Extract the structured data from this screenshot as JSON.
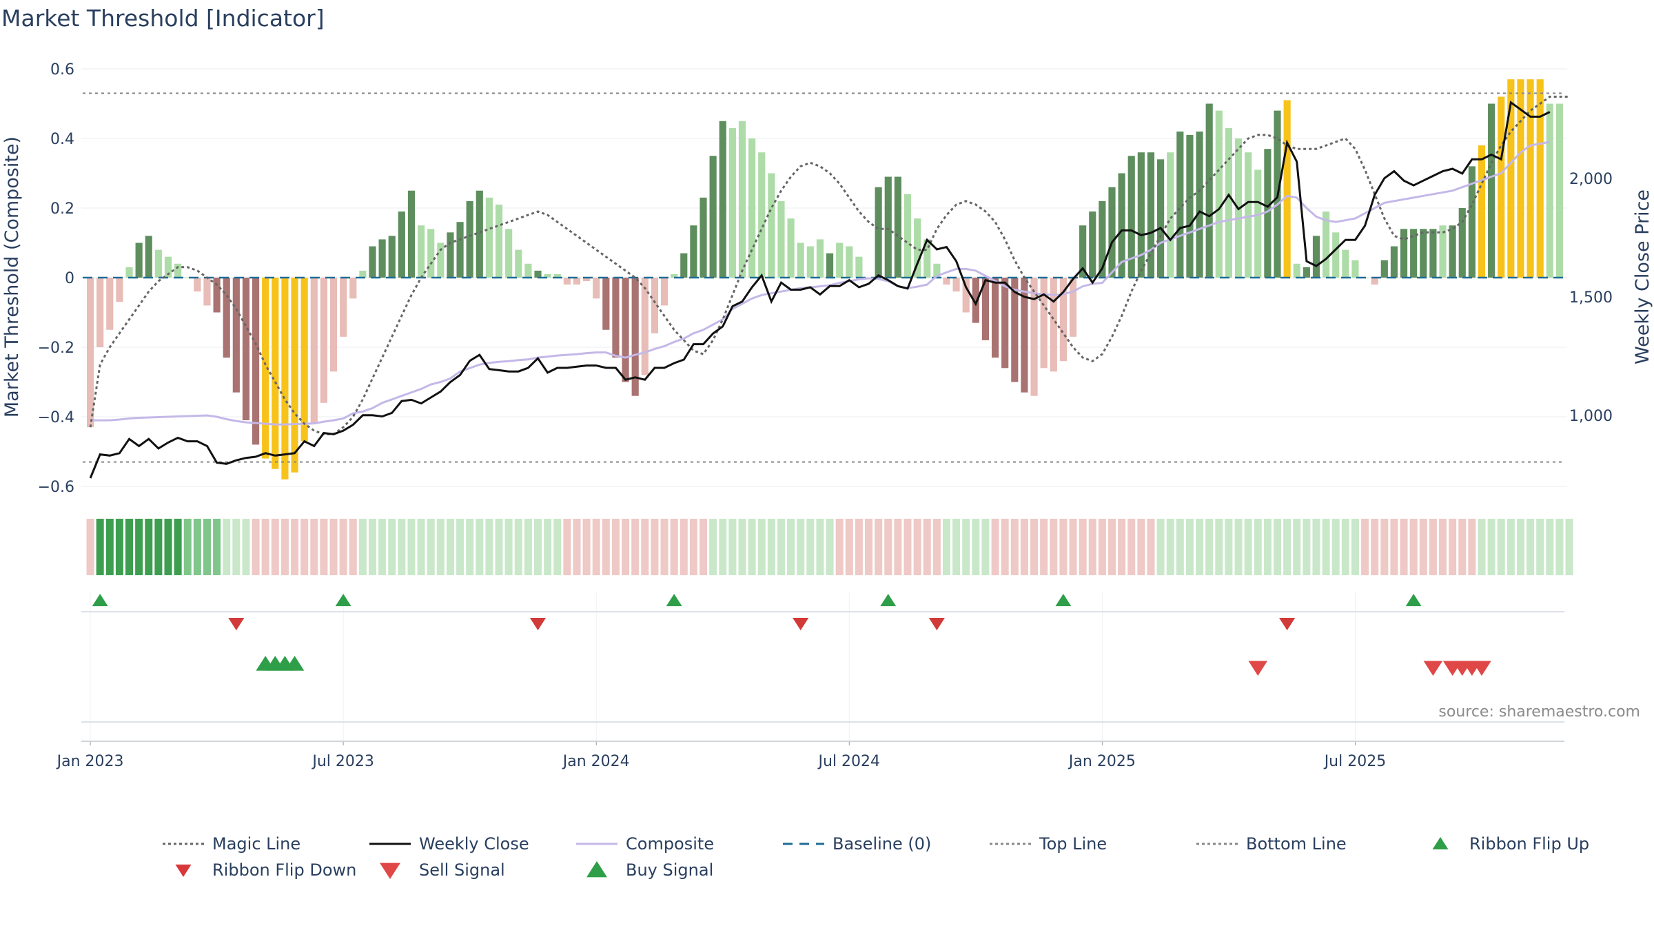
{
  "chart_data": {
    "type": "bar",
    "title": "Market Threshold [Indicator]",
    "ylabel_left": "Market Threshold (Composite)",
    "ylabel_right": "Weekly Close Price",
    "source": "source: sharemaestro.com",
    "x_ticks": [
      "Jan 2023",
      "Jul 2023",
      "Jan 2024",
      "Jul 2024",
      "Jan 2025",
      "Jul 2025"
    ],
    "y_left_ticks": [
      "0.6",
      "0.4",
      "0.2",
      "0",
      "−0.2",
      "−0.4",
      "−0.6"
    ],
    "y_left_tick_values": [
      0.6,
      0.4,
      0.2,
      0,
      -0.2,
      -0.4,
      -0.6
    ],
    "y_right_ticks": [
      "2,000",
      "1,500",
      "1,000"
    ],
    "y_right_tick_values": [
      2000,
      1500,
      1000
    ],
    "ylim_left": [
      -0.6,
      0.6
    ],
    "ylim_right": [
      700,
      2450
    ],
    "top_line": 0.53,
    "bottom_line": -0.53,
    "baseline": 0,
    "grid": true,
    "legend_position": "bottom",
    "series": [
      {
        "name": "Magic Line",
        "style": "dotted",
        "color": "#666666",
        "values": [
          -0.43,
          -0.25,
          -0.2,
          -0.16,
          -0.12,
          -0.08,
          -0.04,
          -0.01,
          0.01,
          0.03,
          0.03,
          0.02,
          0.0,
          -0.02,
          -0.05,
          -0.09,
          -0.14,
          -0.19,
          -0.25,
          -0.3,
          -0.35,
          -0.39,
          -0.42,
          -0.44,
          -0.45,
          -0.45,
          -0.43,
          -0.4,
          -0.35,
          -0.29,
          -0.23,
          -0.17,
          -0.11,
          -0.05,
          0.0,
          0.04,
          0.08,
          0.1,
          0.11,
          0.12,
          0.13,
          0.14,
          0.15,
          0.16,
          0.17,
          0.18,
          0.19,
          0.18,
          0.16,
          0.14,
          0.12,
          0.1,
          0.08,
          0.06,
          0.04,
          0.02,
          0.0,
          -0.03,
          -0.07,
          -0.11,
          -0.15,
          -0.18,
          -0.21,
          -0.22,
          -0.18,
          -0.12,
          -0.05,
          0.02,
          0.08,
          0.14,
          0.2,
          0.25,
          0.29,
          0.32,
          0.33,
          0.32,
          0.3,
          0.27,
          0.23,
          0.19,
          0.16,
          0.14,
          0.14,
          0.12,
          0.1,
          0.08,
          0.08,
          0.14,
          0.18,
          0.21,
          0.22,
          0.21,
          0.19,
          0.16,
          0.11,
          0.05,
          0.0,
          -0.04,
          -0.08,
          -0.12,
          -0.16,
          -0.2,
          -0.23,
          -0.24,
          -0.22,
          -0.17,
          -0.11,
          -0.04,
          0.02,
          0.07,
          0.12,
          0.17,
          0.2,
          0.23,
          0.25,
          0.28,
          0.31,
          0.34,
          0.37,
          0.4,
          0.41,
          0.41,
          0.4,
          0.38,
          0.37,
          0.37,
          0.37,
          0.38,
          0.39,
          0.4,
          0.37,
          0.31,
          0.24,
          0.17,
          0.12,
          0.11,
          0.12,
          0.13,
          0.13,
          0.13,
          0.14,
          0.16,
          0.21,
          0.27,
          0.33,
          0.38,
          0.42,
          0.45,
          0.48,
          0.5,
          0.52,
          0.52,
          0.52
        ]
      },
      {
        "name": "Weekly Close",
        "style": "solid",
        "color": "#111111",
        "values": [
          735,
          835,
          830,
          840,
          900,
          870,
          900,
          860,
          885,
          905,
          890,
          890,
          870,
          800,
          795,
          810,
          820,
          825,
          840,
          830,
          835,
          840,
          890,
          870,
          925,
          920,
          935,
          960,
          1000,
          1000,
          995,
          1010,
          1060,
          1065,
          1050,
          1075,
          1100,
          1140,
          1170,
          1230,
          1255,
          1195,
          1190,
          1185,
          1185,
          1200,
          1240,
          1180,
          1200,
          1200,
          1205,
          1210,
          1210,
          1200,
          1200,
          1150,
          1160,
          1150,
          1200,
          1200,
          1220,
          1235,
          1300,
          1300,
          1345,
          1375,
          1460,
          1480,
          1540,
          1590,
          1480,
          1560,
          1530,
          1530,
          1540,
          1510,
          1545,
          1545,
          1570,
          1540,
          1555,
          1590,
          1570,
          1545,
          1535,
          1640,
          1740,
          1700,
          1710,
          1650,
          1540,
          1470,
          1570,
          1560,
          1560,
          1520,
          1500,
          1490,
          1510,
          1480,
          1520,
          1575,
          1620,
          1560,
          1620,
          1730,
          1780,
          1780,
          1760,
          1770,
          1790,
          1740,
          1790,
          1800,
          1860,
          1840,
          1870,
          1930,
          1870,
          1900,
          1900,
          1880,
          1920,
          2150,
          2070,
          1650,
          1630,
          1660,
          1700,
          1740,
          1740,
          1800,
          1930,
          2000,
          2030,
          1990,
          1970,
          1990,
          2010,
          2030,
          2040,
          2020,
          2080,
          2080,
          2100,
          2080,
          2320,
          2290,
          2260,
          2260,
          2280
        ]
      },
      {
        "name": "Composite",
        "style": "solid",
        "color": "#c4b8e8",
        "values": [
          -0.41,
          -0.41,
          -0.41,
          -0.408,
          -0.405,
          -0.403,
          -0.402,
          -0.401,
          -0.4,
          -0.399,
          -0.398,
          -0.397,
          -0.396,
          -0.4,
          -0.407,
          -0.412,
          -0.416,
          -0.418,
          -0.42,
          -0.422,
          -0.422,
          -0.421,
          -0.42,
          -0.419,
          -0.414,
          -0.41,
          -0.405,
          -0.39,
          -0.385,
          -0.375,
          -0.36,
          -0.35,
          -0.34,
          -0.33,
          -0.32,
          -0.307,
          -0.3,
          -0.29,
          -0.27,
          -0.26,
          -0.25,
          -0.245,
          -0.242,
          -0.24,
          -0.237,
          -0.235,
          -0.23,
          -0.227,
          -0.224,
          -0.222,
          -0.22,
          -0.217,
          -0.215,
          -0.215,
          -0.225,
          -0.23,
          -0.222,
          -0.215,
          -0.205,
          -0.197,
          -0.185,
          -0.175,
          -0.16,
          -0.15,
          -0.135,
          -0.12,
          -0.09,
          -0.075,
          -0.06,
          -0.05,
          -0.045,
          -0.04,
          -0.035,
          -0.03,
          -0.028,
          -0.025,
          -0.022,
          -0.015,
          -0.01,
          -0.005,
          -0.002,
          -0.004,
          -0.01,
          -0.025,
          -0.03,
          -0.026,
          -0.02,
          0.005,
          0.015,
          0.025,
          0.025,
          0.02,
          0.005,
          -0.01,
          -0.025,
          -0.035,
          -0.04,
          -0.045,
          -0.048,
          -0.05,
          -0.048,
          -0.04,
          -0.025,
          -0.018,
          -0.015,
          0.015,
          0.045,
          0.055,
          0.065,
          0.08,
          0.1,
          0.11,
          0.12,
          0.13,
          0.14,
          0.15,
          0.16,
          0.165,
          0.17,
          0.175,
          0.18,
          0.19,
          0.21,
          0.235,
          0.23,
          0.2,
          0.175,
          0.165,
          0.16,
          0.165,
          0.17,
          0.185,
          0.2,
          0.215,
          0.22,
          0.225,
          0.23,
          0.235,
          0.24,
          0.245,
          0.25,
          0.26,
          0.27,
          0.28,
          0.29,
          0.3,
          0.33,
          0.36,
          0.38,
          0.385,
          0.39
        ]
      }
    ],
    "bars": {
      "name": "Market Threshold",
      "values": [
        -0.43,
        -0.2,
        -0.15,
        -0.07,
        0.03,
        0.1,
        0.12,
        0.08,
        0.06,
        0.04,
        0.0,
        -0.04,
        -0.08,
        -0.1,
        -0.23,
        -0.33,
        -0.41,
        -0.48,
        -0.52,
        -0.55,
        -0.58,
        -0.56,
        -0.47,
        -0.42,
        -0.36,
        -0.27,
        -0.17,
        -0.06,
        0.02,
        0.09,
        0.11,
        0.12,
        0.19,
        0.25,
        0.15,
        0.14,
        0.1,
        0.13,
        0.16,
        0.22,
        0.25,
        0.23,
        0.21,
        0.14,
        0.08,
        0.04,
        0.02,
        0.01,
        0.01,
        -0.02,
        -0.02,
        -0.01,
        -0.06,
        -0.15,
        -0.23,
        -0.3,
        -0.34,
        -0.28,
        -0.16,
        -0.08,
        0.01,
        0.07,
        0.15,
        0.23,
        0.35,
        0.45,
        0.43,
        0.45,
        0.4,
        0.36,
        0.3,
        0.22,
        0.17,
        0.1,
        0.09,
        0.11,
        0.07,
        0.1,
        0.09,
        0.06,
        0.0,
        0.26,
        0.29,
        0.29,
        0.24,
        0.17,
        0.11,
        0.04,
        -0.02,
        -0.04,
        -0.1,
        -0.13,
        -0.18,
        -0.23,
        -0.26,
        -0.3,
        -0.33,
        -0.34,
        -0.26,
        -0.27,
        -0.24,
        -0.17,
        0.15,
        0.19,
        0.22,
        0.26,
        0.3,
        0.35,
        0.36,
        0.36,
        0.34,
        0.36,
        0.42,
        0.41,
        0.42,
        0.5,
        0.48,
        0.43,
        0.4,
        0.36,
        0.31,
        0.37,
        0.48,
        0.51,
        0.04,
        0.03,
        0.12,
        0.19,
        0.13,
        0.08,
        0.05,
        0.0,
        -0.02,
        0.05,
        0.09,
        0.14,
        0.14,
        0.14,
        0.14,
        0.15,
        0.15,
        0.2,
        0.32,
        0.38,
        0.5,
        0.52,
        0.57,
        0.57,
        0.57,
        0.57,
        0.5,
        0.5
      ],
      "phases": [
        "L",
        "L",
        "L",
        "L",
        "L",
        "D",
        "D",
        "L",
        "L",
        "L",
        "L",
        "L",
        "L",
        "D",
        "D",
        "D",
        "D",
        "D",
        "Y",
        "Y",
        "Y",
        "Y",
        "Y",
        "L",
        "L",
        "L",
        "L",
        "L",
        "L",
        "D",
        "D",
        "D",
        "D",
        "D",
        "L",
        "L",
        "L",
        "D",
        "D",
        "D",
        "D",
        "L",
        "L",
        "L",
        "L",
        "L",
        "D",
        "L",
        "L",
        "L",
        "L",
        "L",
        "L",
        "D",
        "D",
        "D",
        "D",
        "L",
        "L",
        "L",
        "L",
        "D",
        "D",
        "D",
        "D",
        "D",
        "L",
        "L",
        "L",
        "L",
        "L",
        "L",
        "L",
        "L",
        "L",
        "L",
        "D",
        "L",
        "L",
        "L",
        "L",
        "D",
        "D",
        "D",
        "L",
        "L",
        "L",
        "L",
        "L",
        "L",
        "L",
        "D",
        "D",
        "D",
        "D",
        "D",
        "D",
        "L",
        "L",
        "L",
        "L",
        "L",
        "D",
        "D",
        "D",
        "D",
        "D",
        "D",
        "D",
        "D",
        "D",
        "L",
        "D",
        "D",
        "D",
        "D",
        "L",
        "L",
        "L",
        "L",
        "L",
        "D",
        "D",
        "Y",
        "L",
        "D",
        "D",
        "L",
        "L",
        "L",
        "L",
        "L",
        "L",
        "D",
        "D",
        "D",
        "D",
        "D",
        "D",
        "L",
        "D",
        "D",
        "D",
        "Y",
        "D",
        "Y",
        "Y",
        "Y",
        "Y",
        "Y",
        "L"
      ],
      "colors": {
        "pos_dark": "#5e8e5e",
        "pos_light": "#aedca8",
        "neg_dark": "#a97371",
        "neg_light": "#e8bcb7",
        "extreme": "#f7c31a"
      }
    },
    "ribbon": {
      "levels": [
        -1,
        3,
        3,
        3,
        3,
        3,
        3,
        3,
        3,
        3,
        2,
        2,
        2,
        2,
        1,
        1,
        1,
        -1,
        -1,
        -1,
        -1,
        -1,
        -1,
        -1,
        -1,
        -1,
        -1,
        -1,
        1,
        1,
        1,
        1,
        1,
        1,
        1,
        1,
        1,
        1,
        1,
        1,
        1,
        1,
        1,
        1,
        1,
        1,
        1,
        1,
        1,
        -1,
        -1,
        -1,
        -1,
        -1,
        -1,
        -1,
        -1,
        -1,
        -1,
        -1,
        -1,
        -1,
        -1,
        -1,
        1,
        1,
        1,
        1,
        1,
        1,
        1,
        1,
        1,
        1,
        1,
        1,
        1,
        -1,
        -1,
        -1,
        -1,
        -1,
        -1,
        -1,
        -1,
        -1,
        -1,
        -1,
        1,
        1,
        1,
        1,
        1,
        -1,
        -1,
        -1,
        -1,
        -1,
        -1,
        -1,
        -1,
        -1,
        -1,
        -1,
        -1,
        -1,
        -1,
        -1,
        -1,
        -1,
        1,
        1,
        1,
        1,
        1,
        1,
        1,
        1,
        1,
        1,
        1,
        1,
        1,
        1,
        1,
        1,
        1,
        1,
        1,
        1,
        1,
        -1,
        -1,
        -1,
        -1,
        -1,
        -1,
        -1,
        -1,
        -1,
        -1,
        -1,
        -1,
        1,
        1,
        1,
        1,
        1,
        1,
        1,
        1,
        1,
        1
      ],
      "colors": {
        "strong_green": "#3d9e50",
        "mid_green": "#7fc68a",
        "light_green": "#c9e8c9",
        "light_red": "#eec9c6",
        "lightest_red": "#f3d9d7"
      }
    },
    "ribbon_flip_up_weeks": [
      1,
      26,
      60,
      82,
      100,
      136
    ],
    "ribbon_flip_down_weeks": [
      15,
      46,
      73,
      87,
      123
    ],
    "buy_signal_weeks": [
      18,
      19,
      20,
      21
    ],
    "sell_signal_weeks": [
      120,
      138,
      140,
      141,
      142,
      143
    ],
    "legend": [
      {
        "label": "Magic Line",
        "kind": "dotted-line",
        "color": "#666666"
      },
      {
        "label": "Weekly Close",
        "kind": "line",
        "color": "#111111"
      },
      {
        "label": "Composite",
        "kind": "line",
        "color": "#c4b8e8"
      },
      {
        "label": "Baseline (0)",
        "kind": "dashed-line",
        "color": "#1f6b95"
      },
      {
        "label": "Top Line",
        "kind": "dotted-line",
        "color": "#888888"
      },
      {
        "label": "Bottom Line",
        "kind": "dotted-line",
        "color": "#888888"
      },
      {
        "label": "Ribbon Flip Up",
        "kind": "triangle-up",
        "color": "#2e9e48"
      },
      {
        "label": "Ribbon Flip Down",
        "kind": "triangle-down",
        "color": "#d9383a"
      },
      {
        "label": "Sell Signal",
        "kind": "triangle-down",
        "color": "#e04848"
      },
      {
        "label": "Buy Signal",
        "kind": "triangle-up",
        "color": "#2e9e48"
      }
    ]
  }
}
